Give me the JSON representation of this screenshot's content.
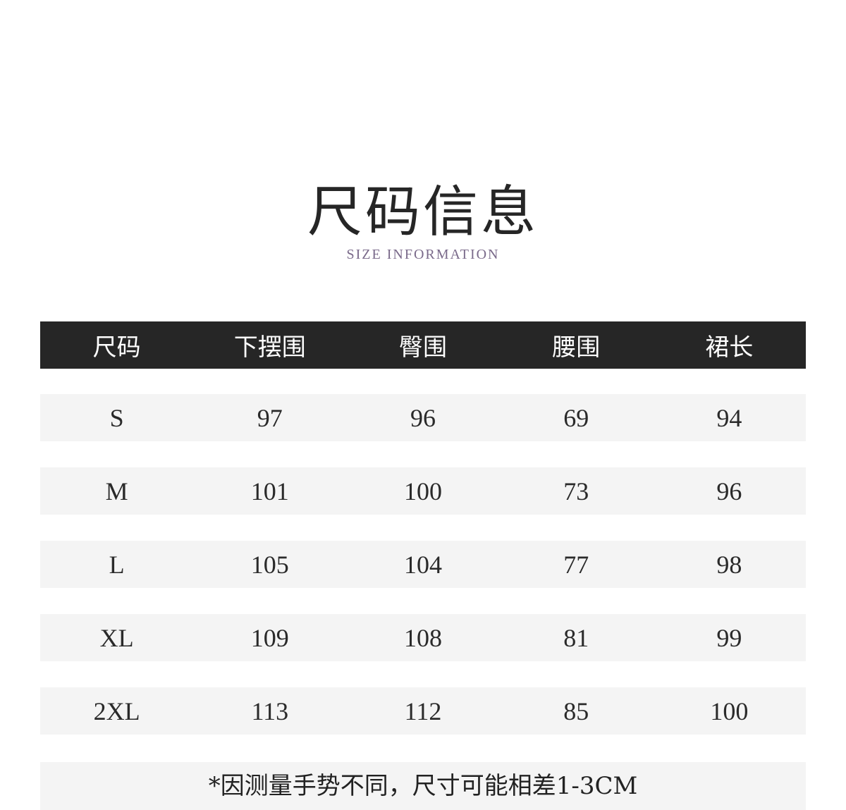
{
  "title": "尺码信息",
  "subtitle": "SIZE INFORMATION",
  "table": {
    "headers": [
      "尺码",
      "下摆围",
      "臀围",
      "腰围",
      "裙长"
    ],
    "rows": [
      [
        "S",
        "97",
        "96",
        "69",
        "94"
      ],
      [
        "M",
        "101",
        "100",
        "73",
        "96"
      ],
      [
        "L",
        "105",
        "104",
        "77",
        "98"
      ],
      [
        "XL",
        "109",
        "108",
        "81",
        "99"
      ],
      [
        "2XL",
        "113",
        "112",
        "85",
        "100"
      ]
    ]
  },
  "note": "*因测量手势不同，尺寸可能相差1-3CM"
}
